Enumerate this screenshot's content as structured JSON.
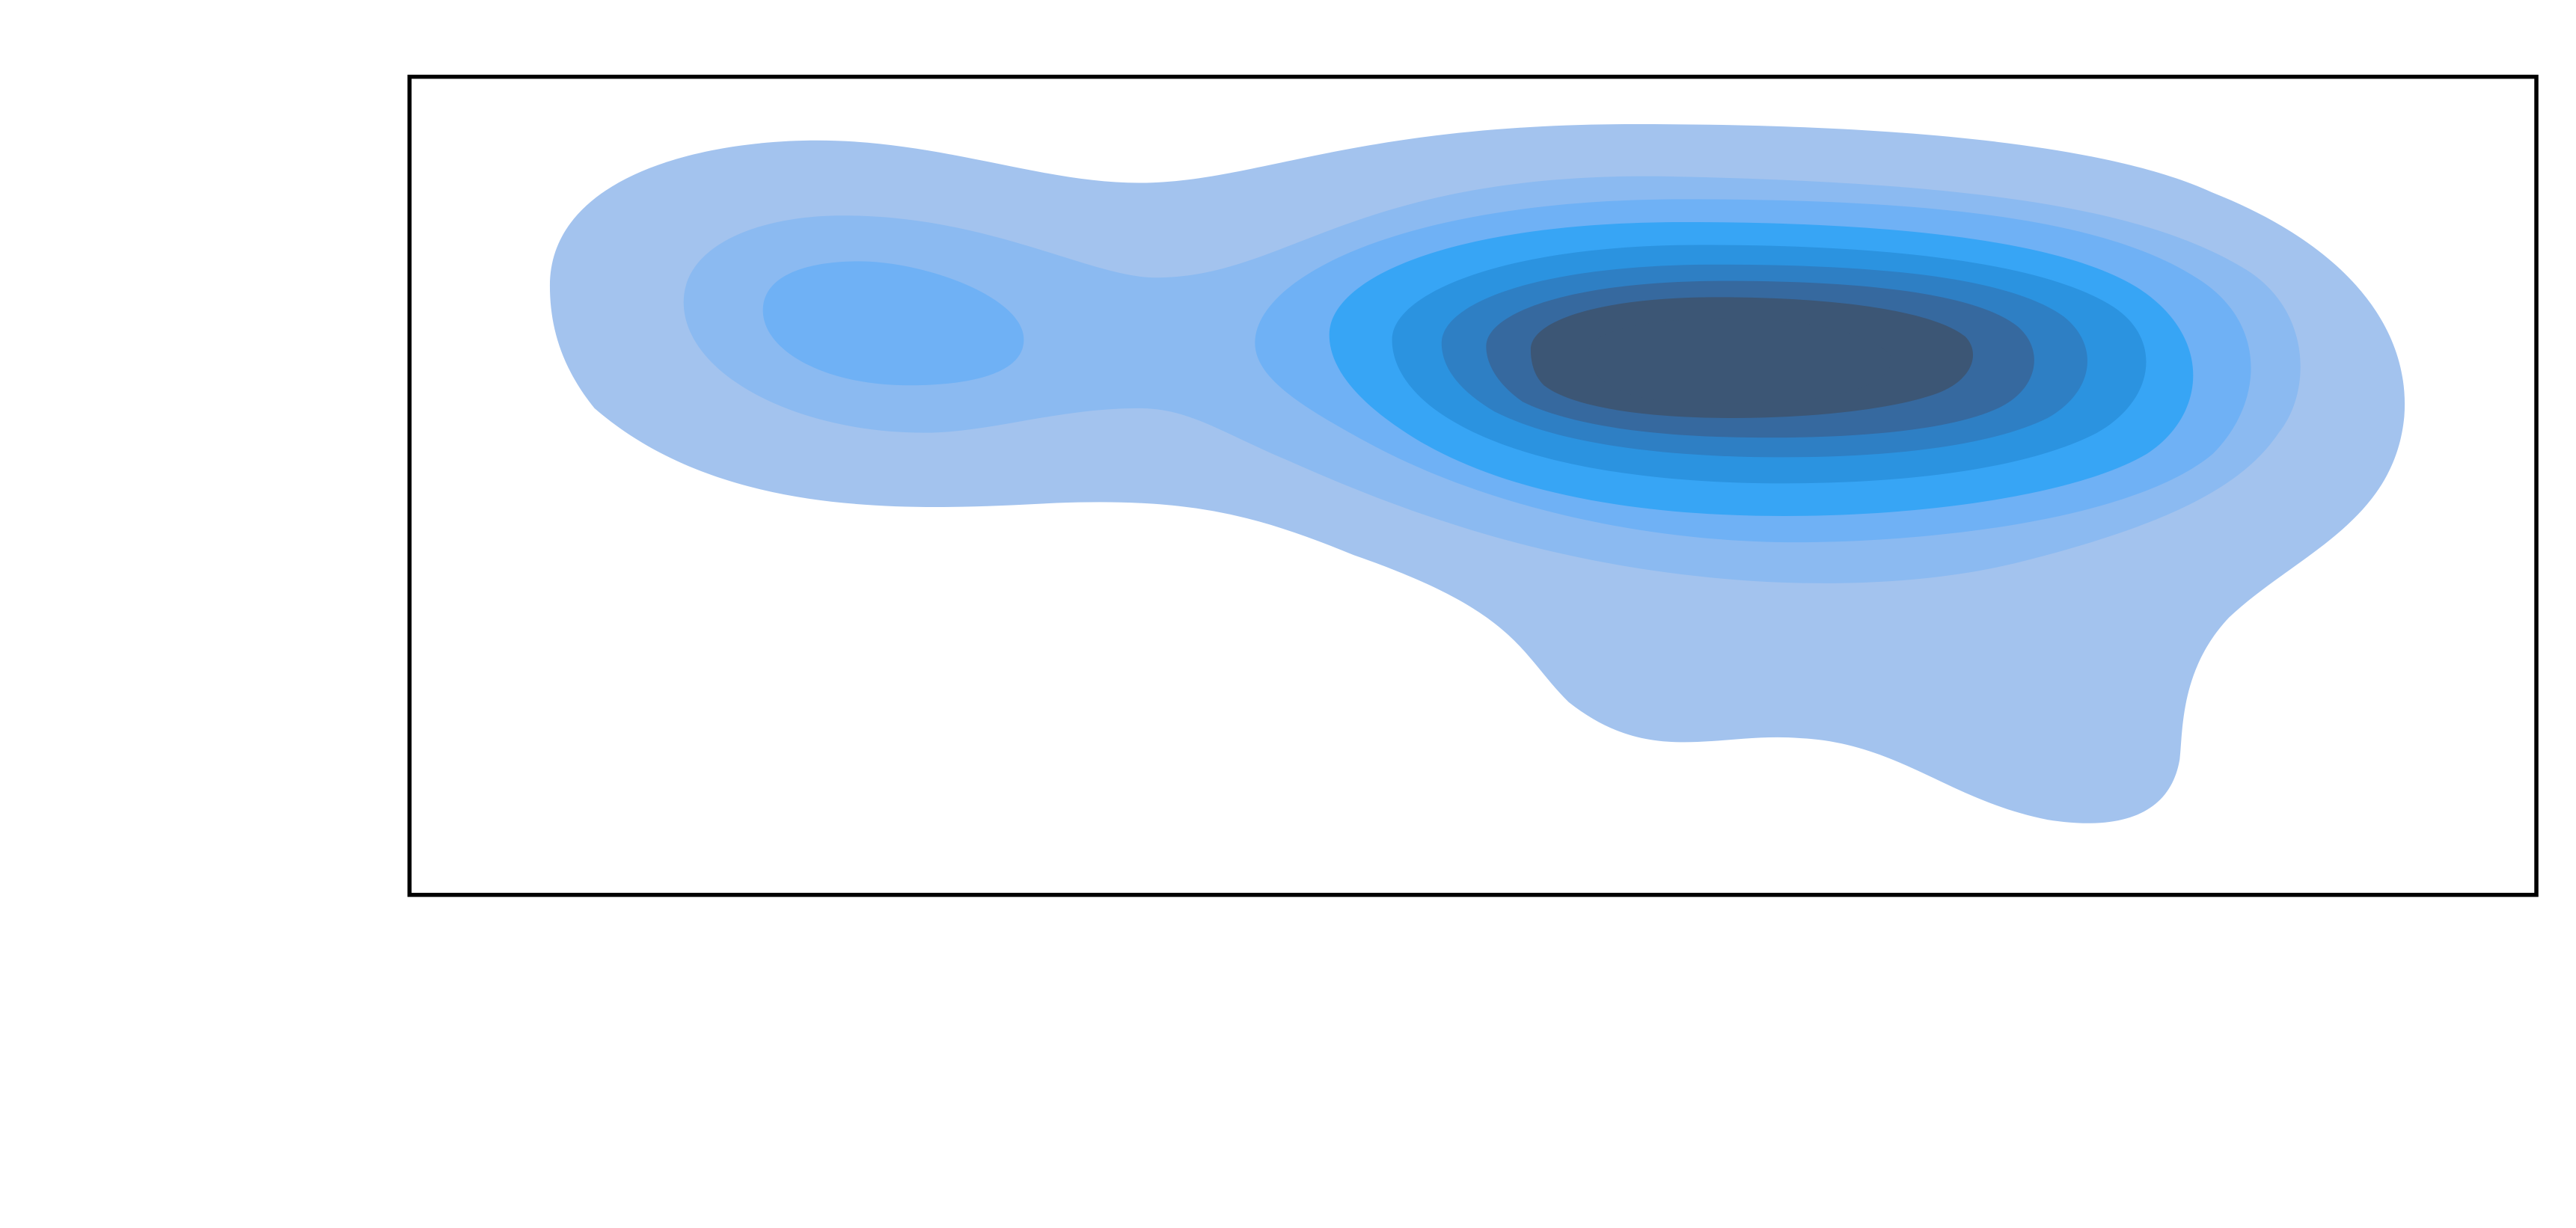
{
  "chart_data": {
    "type": "kde-contour",
    "filled": true,
    "axes_visible": false,
    "legend": "none",
    "grid": false,
    "levels": 8,
    "colors": {
      "level_1": "#a3c3ee",
      "level_2": "#8bbaf1",
      "level_3": "#6fb1f5",
      "level_4": "#37a5f5",
      "level_5": "#2b93e0",
      "level_6": "#2e7fc4",
      "level_7": "#36699f",
      "level_8": "#3c5675",
      "frame": "#000000",
      "background": "#ffffff"
    }
  }
}
